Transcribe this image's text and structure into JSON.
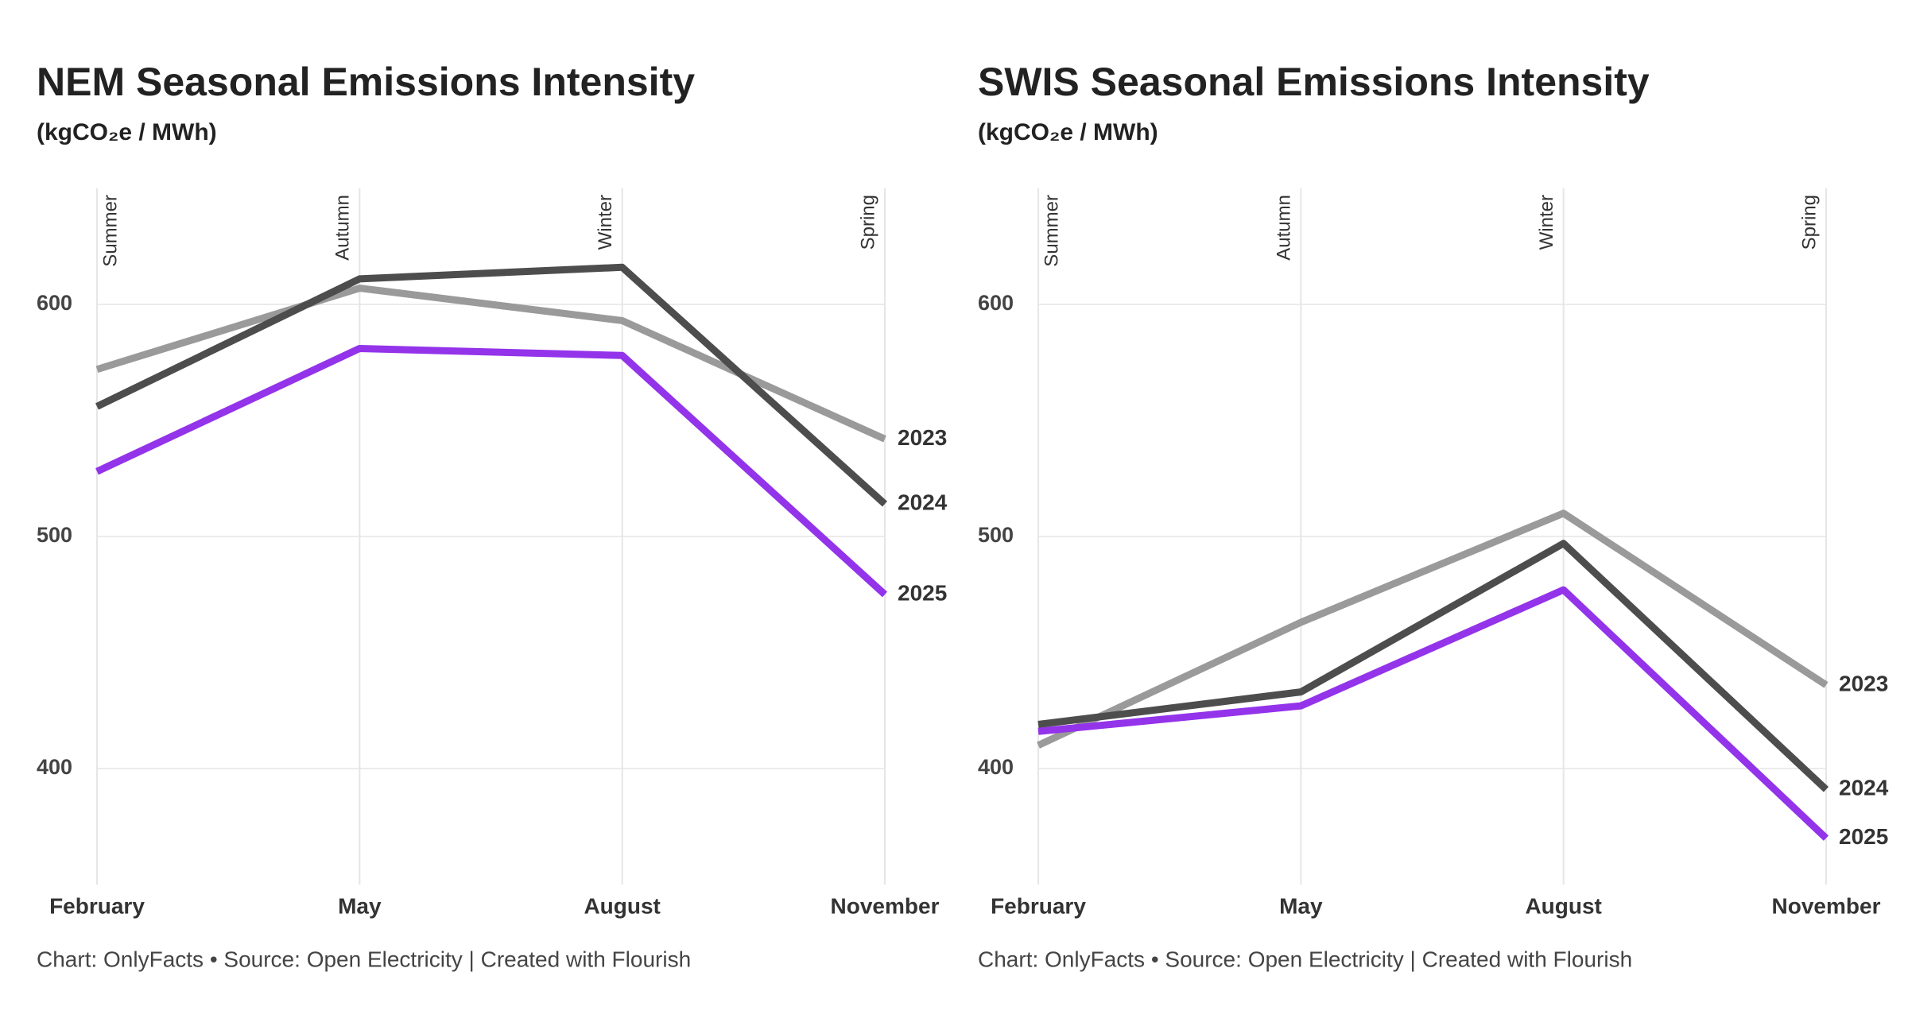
{
  "chart_data": [
    {
      "type": "line",
      "title": "NEM Seasonal Emissions Intensity",
      "subtitle": "(kgCO₂e / MWh)",
      "categories": [
        "February",
        "May",
        "August",
        "November"
      ],
      "annotations": [
        "Summer",
        "Autumn",
        "Winter",
        "Spring"
      ],
      "series": [
        {
          "name": "2023",
          "color": "#9a9a9a",
          "values": [
            572,
            607,
            593,
            542
          ]
        },
        {
          "name": "2024",
          "color": "#4d4d4d",
          "values": [
            556,
            611,
            616,
            514
          ]
        },
        {
          "name": "2025",
          "color": "#9333ea",
          "values": [
            528,
            581,
            578,
            475
          ]
        }
      ],
      "ylim": [
        350,
        650
      ],
      "yticks": [
        400,
        500,
        600
      ],
      "grid": true,
      "source": "Chart: OnlyFacts • Source: Open Electricity | Created with Flourish"
    },
    {
      "type": "line",
      "title": "SWIS Seasonal Emissions Intensity",
      "subtitle": "(kgCO₂e / MWh)",
      "categories": [
        "February",
        "May",
        "August",
        "November"
      ],
      "annotations": [
        "Summer",
        "Autumn",
        "Winter",
        "Spring"
      ],
      "series": [
        {
          "name": "2023",
          "color": "#9a9a9a",
          "values": [
            410,
            463,
            510,
            436
          ]
        },
        {
          "name": "2024",
          "color": "#4d4d4d",
          "values": [
            419,
            433,
            497,
            391
          ]
        },
        {
          "name": "2025",
          "color": "#9333ea",
          "values": [
            416,
            427,
            477,
            370
          ]
        }
      ],
      "ylim": [
        350,
        650
      ],
      "yticks": [
        400,
        500,
        600
      ],
      "grid": true,
      "source": "Chart: OnlyFacts • Source: Open Electricity | Created with Flourish"
    }
  ]
}
